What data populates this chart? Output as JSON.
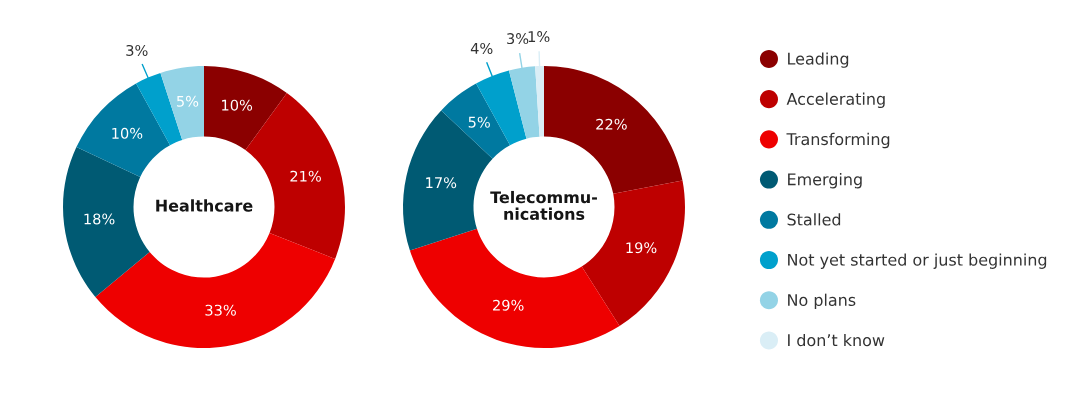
{
  "chart_data": [
    {
      "type": "donut",
      "title": "Healthcare",
      "categories": [
        null,
        null,
        null,
        null,
        null,
        null,
        null
      ],
      "values": [
        10,
        21,
        33,
        18,
        10,
        3,
        5
      ],
      "value_labels": [
        "10%",
        "21%",
        "33%",
        "18%",
        "10%",
        "3%",
        "5%"
      ],
      "colors": [
        "#8b0000",
        "#be0000",
        "#ee0000",
        "#005a73",
        "#0079a0",
        "#00a0cc",
        "#93d3e6"
      ],
      "legend": false
    },
    {
      "type": "donut",
      "title": "Telecommu-\nnications",
      "categories": [
        "Leading",
        "Accelerating",
        "Transforming",
        "Emerging",
        "Stalled",
        "Not yet started or just beginning",
        "No plans",
        "I don’t know"
      ],
      "values": [
        22,
        19,
        29,
        17,
        5,
        4,
        3,
        1
      ],
      "value_labels": [
        "22%",
        "19%",
        "29%",
        "17%",
        "5%",
        "4%",
        "3%",
        "1%"
      ],
      "colors": [
        "#8b0000",
        "#be0000",
        "#ee0000",
        "#005a73",
        "#0079a0",
        "#00a0cc",
        "#93d3e6",
        "#daeef6"
      ],
      "legend": "right"
    }
  ]
}
